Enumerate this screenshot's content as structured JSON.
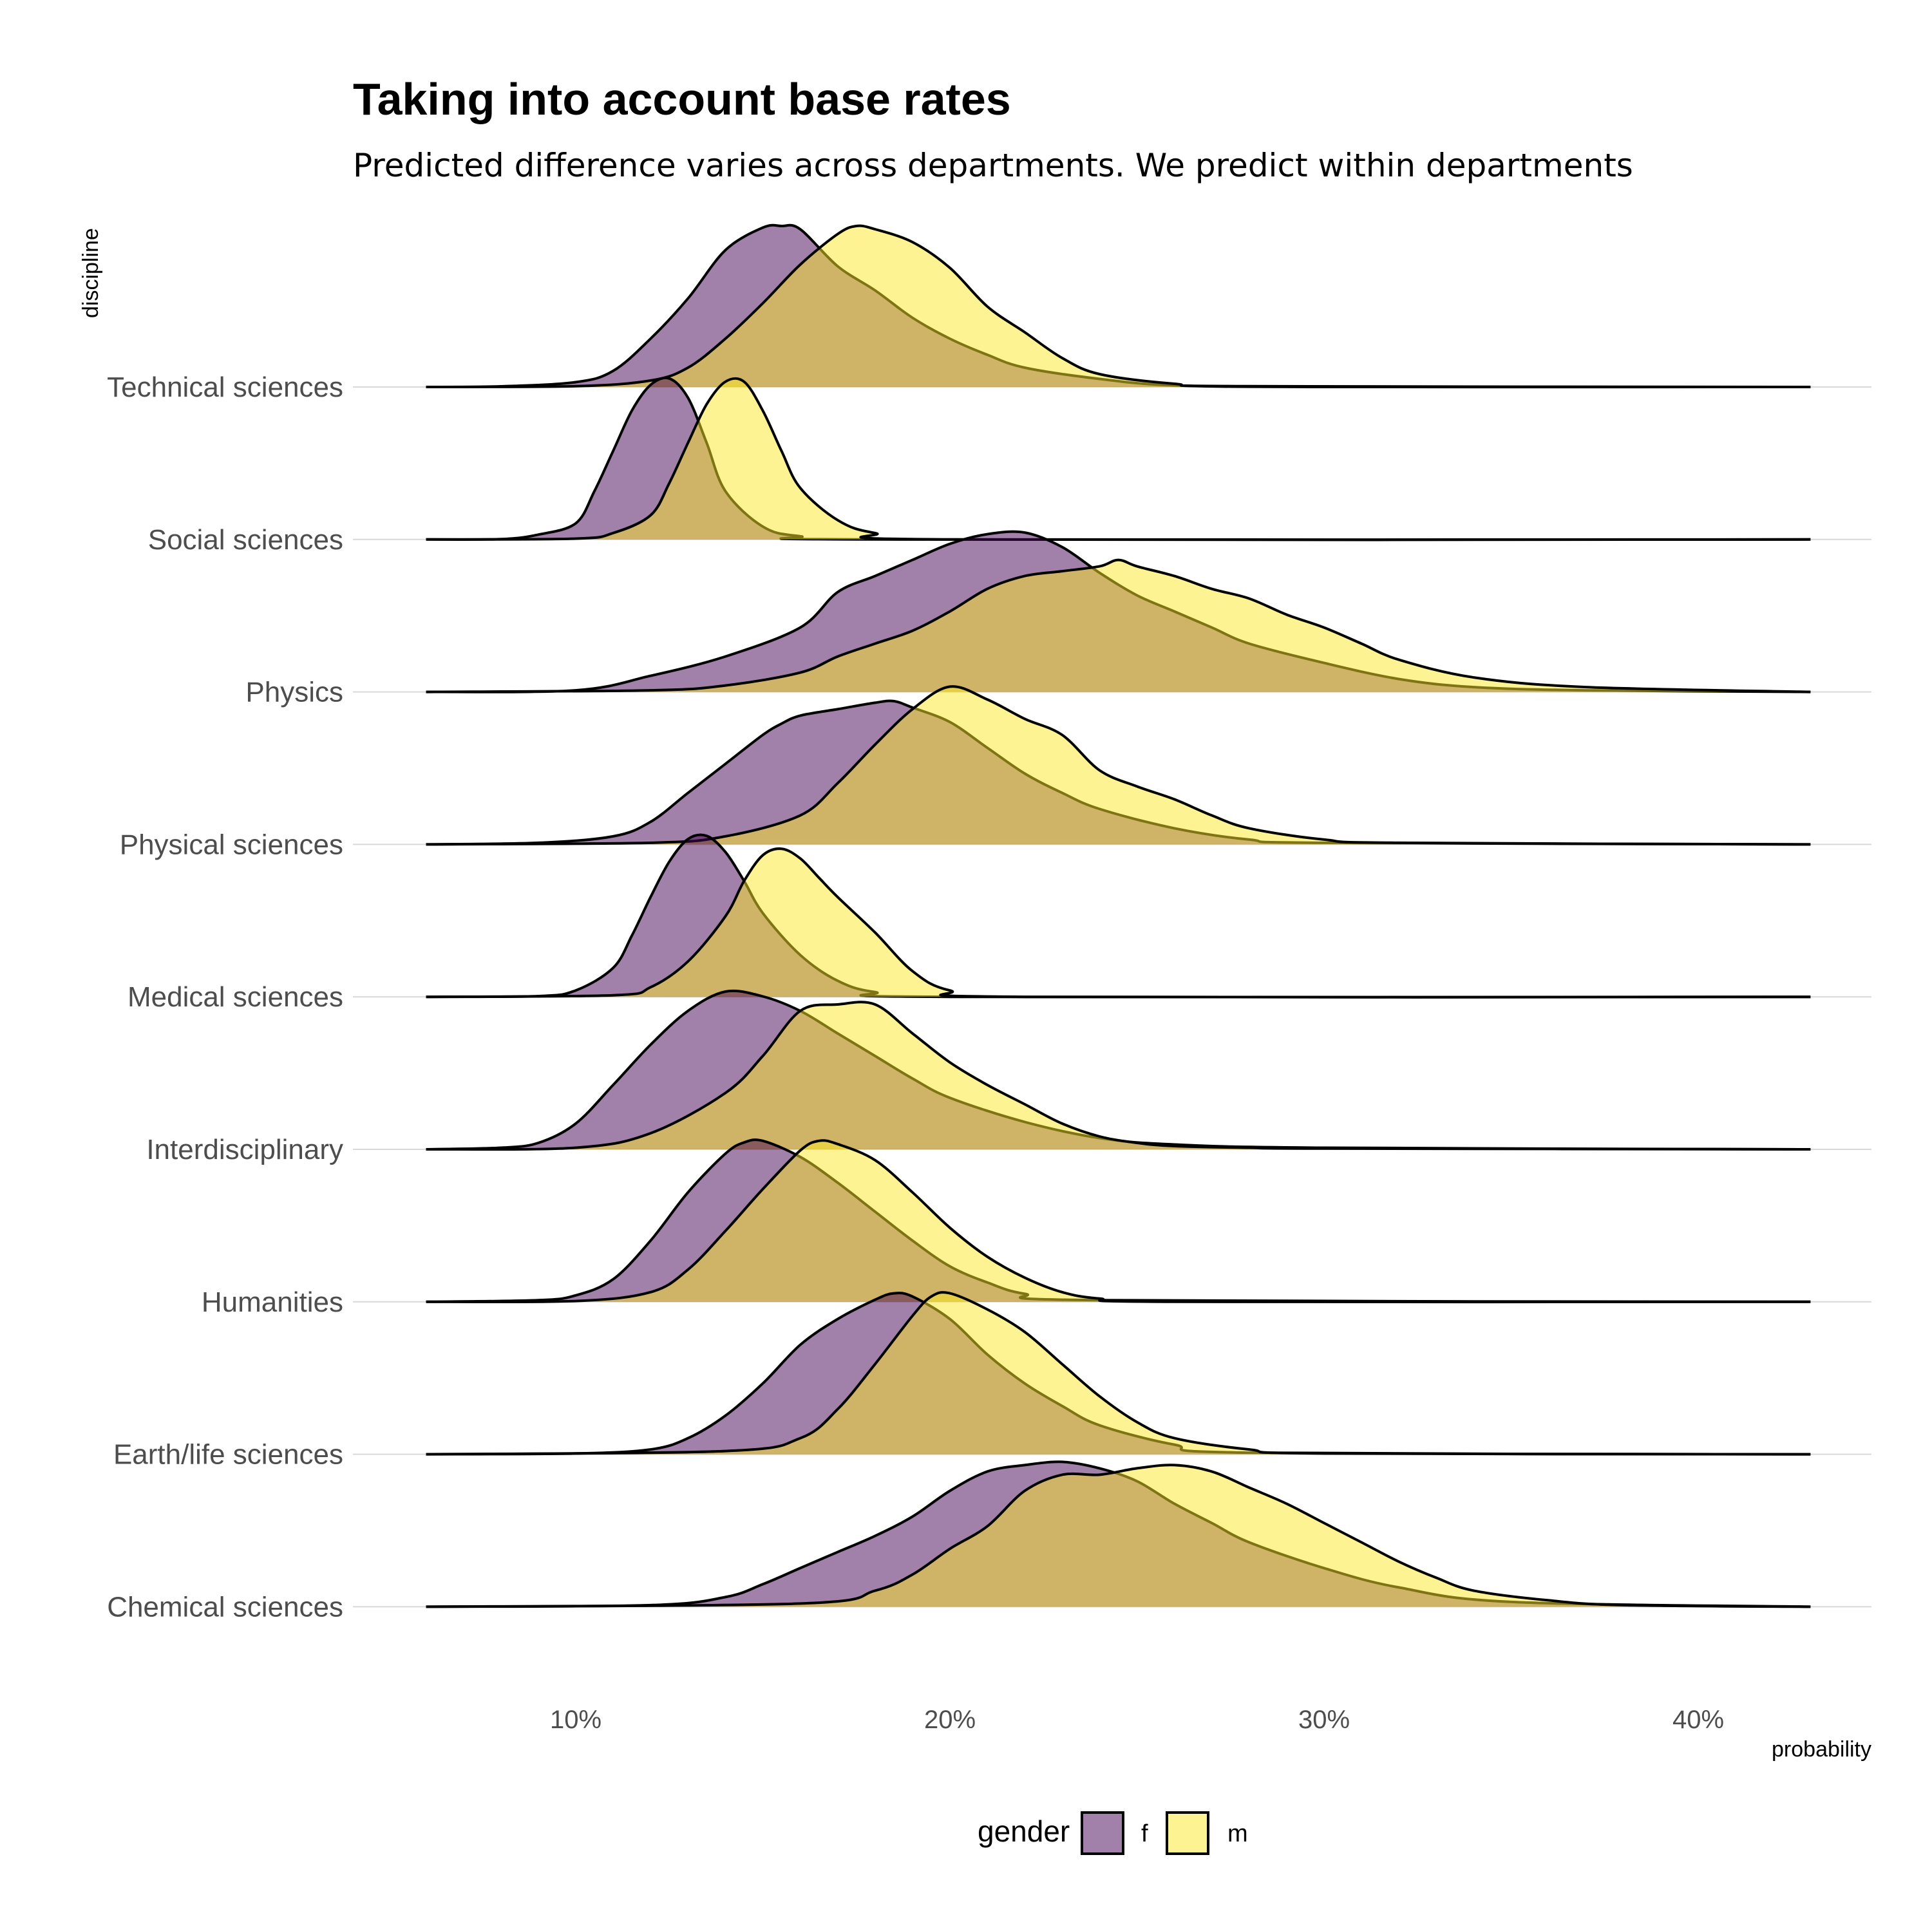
{
  "chart_data": {
    "type": "area",
    "subtype": "ridgeline",
    "title": "Taking into account base rates",
    "subtitle": "Predicted difference varies across departments. We predict within departments",
    "xlabel": "probability",
    "ylabel": "discipline",
    "x_ticks": [
      "10%",
      "20%",
      "30%",
      "40%"
    ],
    "x_tick_values": [
      0.1,
      0.2,
      0.3,
      0.4
    ],
    "xlim": [
      0.04,
      0.45
    ],
    "x_range_drawn": [
      0.06,
      0.43
    ],
    "grid": "horizontal only",
    "legend": {
      "title": "gender",
      "position": "bottom",
      "entries": [
        {
          "label": "f",
          "color": "#440154",
          "alpha": 0.5
        },
        {
          "label": "m",
          "color": "#FDE725",
          "alpha": 0.5
        }
      ]
    },
    "categories": [
      "Technical sciences",
      "Social sciences",
      "Physics",
      "Physical sciences",
      "Medical sciences",
      "Interdisciplinary",
      "Humanities",
      "Earth/life sciences",
      "Chemical sciences"
    ],
    "series": [
      {
        "name": "f",
        "distributions": [
          {
            "category": "Technical sciences",
            "x": [
              0.06,
              0.08,
              0.1,
              0.11,
              0.12,
              0.13,
              0.14,
              0.15,
              0.155,
              0.16,
              0.17,
              0.18,
              0.19,
              0.2,
              0.21,
              0.22,
              0.24,
              0.26,
              0.3,
              0.43
            ],
            "density": [
              0,
              0.004,
              0.03,
              0.1,
              0.3,
              0.55,
              0.85,
              0.99,
              1.0,
              0.98,
              0.75,
              0.6,
              0.43,
              0.3,
              0.2,
              0.12,
              0.05,
              0.01,
              0,
              0
            ]
          },
          {
            "category": "Social sciences",
            "x": [
              0.06,
              0.08,
              0.09,
              0.1,
              0.105,
              0.11,
              0.115,
              0.12,
              0.125,
              0.13,
              0.135,
              0.14,
              0.15,
              0.16,
              0.18,
              0.43
            ],
            "density": [
              0,
              0.002,
              0.03,
              0.1,
              0.3,
              0.55,
              0.8,
              0.96,
              1.0,
              0.88,
              0.6,
              0.3,
              0.08,
              0.02,
              0,
              0
            ]
          },
          {
            "category": "Physics",
            "x": [
              0.06,
              0.1,
              0.12,
              0.14,
              0.16,
              0.17,
              0.18,
              0.19,
              0.2,
              0.21,
              0.22,
              0.23,
              0.24,
              0.25,
              0.26,
              0.27,
              0.28,
              0.3,
              0.32,
              0.34,
              0.37,
              0.43
            ],
            "density": [
              0,
              0.01,
              0.1,
              0.22,
              0.4,
              0.62,
              0.72,
              0.82,
              0.92,
              0.98,
              0.99,
              0.9,
              0.74,
              0.6,
              0.5,
              0.4,
              0.3,
              0.18,
              0.08,
              0.03,
              0.01,
              0
            ]
          },
          {
            "category": "Physical sciences",
            "x": [
              0.06,
              0.09,
              0.11,
              0.12,
              0.13,
              0.14,
              0.15,
              0.155,
              0.16,
              0.17,
              0.18,
              0.185,
              0.19,
              0.2,
              0.21,
              0.22,
              0.23,
              0.24,
              0.26,
              0.28,
              0.3,
              0.43
            ],
            "density": [
              0,
              0.01,
              0.05,
              0.14,
              0.32,
              0.5,
              0.68,
              0.75,
              0.8,
              0.84,
              0.88,
              0.89,
              0.85,
              0.76,
              0.6,
              0.44,
              0.32,
              0.22,
              0.1,
              0.03,
              0.01,
              0
            ]
          },
          {
            "category": "Medical sciences",
            "x": [
              0.06,
              0.09,
              0.1,
              0.11,
              0.115,
              0.12,
              0.125,
              0.13,
              0.135,
              0.14,
              0.145,
              0.15,
              0.16,
              0.17,
              0.18,
              0.2,
              0.43
            ],
            "density": [
              0,
              0.005,
              0.04,
              0.18,
              0.38,
              0.62,
              0.84,
              0.98,
              1.0,
              0.9,
              0.72,
              0.52,
              0.26,
              0.1,
              0.03,
              0,
              0
            ]
          },
          {
            "category": "Interdisciplinary",
            "x": [
              0.06,
              0.08,
              0.09,
              0.1,
              0.11,
              0.12,
              0.13,
              0.14,
              0.15,
              0.16,
              0.17,
              0.18,
              0.19,
              0.2,
              0.22,
              0.24,
              0.26,
              0.3,
              0.43
            ],
            "density": [
              0,
              0.01,
              0.04,
              0.16,
              0.4,
              0.65,
              0.86,
              0.98,
              0.95,
              0.86,
              0.72,
              0.58,
              0.44,
              0.32,
              0.17,
              0.07,
              0.03,
              0.01,
              0
            ]
          },
          {
            "category": "Humanities",
            "x": [
              0.06,
              0.09,
              0.1,
              0.11,
              0.12,
              0.13,
              0.14,
              0.145,
              0.15,
              0.16,
              0.17,
              0.18,
              0.19,
              0.2,
              0.21,
              0.22,
              0.24,
              0.43
            ],
            "density": [
              0,
              0.01,
              0.04,
              0.14,
              0.38,
              0.68,
              0.92,
              0.99,
              1.0,
              0.9,
              0.74,
              0.56,
              0.38,
              0.22,
              0.12,
              0.05,
              0.01,
              0
            ]
          },
          {
            "category": "Earth/life sciences",
            "x": [
              0.06,
              0.1,
              0.12,
              0.13,
              0.14,
              0.15,
              0.16,
              0.17,
              0.18,
              0.185,
              0.19,
              0.2,
              0.21,
              0.22,
              0.23,
              0.24,
              0.26,
              0.28,
              0.43
            ],
            "density": [
              0,
              0.005,
              0.03,
              0.1,
              0.24,
              0.44,
              0.68,
              0.84,
              0.96,
              1.0,
              0.98,
              0.84,
              0.62,
              0.44,
              0.3,
              0.18,
              0.06,
              0.01,
              0
            ]
          },
          {
            "category": "Chemical sciences",
            "x": [
              0.06,
              0.12,
              0.14,
              0.15,
              0.16,
              0.17,
              0.18,
              0.19,
              0.2,
              0.21,
              0.22,
              0.23,
              0.24,
              0.25,
              0.26,
              0.27,
              0.28,
              0.3,
              0.32,
              0.35,
              0.43
            ],
            "density": [
              0,
              0.01,
              0.06,
              0.14,
              0.24,
              0.34,
              0.44,
              0.56,
              0.72,
              0.84,
              0.88,
              0.9,
              0.86,
              0.78,
              0.64,
              0.52,
              0.4,
              0.24,
              0.12,
              0.03,
              0
            ]
          }
        ]
      },
      {
        "name": "m",
        "distributions": [
          {
            "category": "Technical sciences",
            "x": [
              0.06,
              0.1,
              0.12,
              0.13,
              0.14,
              0.15,
              0.16,
              0.17,
              0.175,
              0.18,
              0.19,
              0.2,
              0.21,
              0.22,
              0.23,
              0.24,
              0.26,
              0.28,
              0.43
            ],
            "density": [
              0,
              0.005,
              0.04,
              0.12,
              0.3,
              0.52,
              0.76,
              0.95,
              1.0,
              0.98,
              0.9,
              0.74,
              0.5,
              0.34,
              0.18,
              0.08,
              0.02,
              0.005,
              0
            ]
          },
          {
            "category": "Social sciences",
            "x": [
              0.06,
              0.1,
              0.11,
              0.12,
              0.125,
              0.13,
              0.135,
              0.14,
              0.145,
              0.15,
              0.155,
              0.16,
              0.17,
              0.18,
              0.2,
              0.43
            ],
            "density": [
              0,
              0.005,
              0.04,
              0.15,
              0.35,
              0.6,
              0.84,
              0.98,
              0.98,
              0.8,
              0.55,
              0.32,
              0.12,
              0.04,
              0,
              0
            ]
          },
          {
            "category": "Physics",
            "x": [
              0.06,
              0.12,
              0.14,
              0.16,
              0.17,
              0.18,
              0.19,
              0.2,
              0.21,
              0.22,
              0.23,
              0.24,
              0.245,
              0.25,
              0.26,
              0.27,
              0.28,
              0.29,
              0.3,
              0.31,
              0.32,
              0.34,
              0.37,
              0.43
            ],
            "density": [
              0,
              0.01,
              0.04,
              0.12,
              0.22,
              0.3,
              0.38,
              0.5,
              0.64,
              0.72,
              0.75,
              0.78,
              0.82,
              0.78,
              0.72,
              0.64,
              0.58,
              0.48,
              0.4,
              0.3,
              0.2,
              0.09,
              0.03,
              0
            ]
          },
          {
            "category": "Physical sciences",
            "x": [
              0.06,
              0.12,
              0.14,
              0.16,
              0.17,
              0.18,
              0.19,
              0.2,
              0.21,
              0.22,
              0.23,
              0.24,
              0.25,
              0.26,
              0.27,
              0.28,
              0.3,
              0.32,
              0.43
            ],
            "density": [
              0,
              0.01,
              0.05,
              0.18,
              0.38,
              0.62,
              0.84,
              0.98,
              0.9,
              0.78,
              0.68,
              0.46,
              0.36,
              0.28,
              0.18,
              0.1,
              0.03,
              0.01,
              0
            ]
          },
          {
            "category": "Medical sciences",
            "x": [
              0.06,
              0.11,
              0.12,
              0.13,
              0.14,
              0.145,
              0.15,
              0.155,
              0.16,
              0.165,
              0.17,
              0.18,
              0.19,
              0.2,
              0.22,
              0.43
            ],
            "density": [
              0,
              0.01,
              0.06,
              0.22,
              0.5,
              0.72,
              0.88,
              0.92,
              0.86,
              0.74,
              0.62,
              0.4,
              0.16,
              0.04,
              0,
              0
            ]
          },
          {
            "category": "Interdisciplinary",
            "x": [
              0.06,
              0.1,
              0.12,
              0.14,
              0.15,
              0.16,
              0.17,
              0.18,
              0.19,
              0.2,
              0.21,
              0.22,
              0.23,
              0.24,
              0.25,
              0.26,
              0.28,
              0.3,
              0.43
            ],
            "density": [
              0,
              0.01,
              0.1,
              0.35,
              0.58,
              0.86,
              0.9,
              0.9,
              0.72,
              0.54,
              0.4,
              0.28,
              0.16,
              0.08,
              0.04,
              0.02,
              0.01,
              0.005,
              0
            ]
          },
          {
            "category": "Humanities",
            "x": [
              0.06,
              0.1,
              0.12,
              0.13,
              0.14,
              0.15,
              0.16,
              0.165,
              0.17,
              0.18,
              0.19,
              0.2,
              0.21,
              0.22,
              0.23,
              0.24,
              0.26,
              0.43
            ],
            "density": [
              0,
              0.005,
              0.06,
              0.2,
              0.44,
              0.7,
              0.94,
              1.0,
              0.98,
              0.88,
              0.68,
              0.46,
              0.28,
              0.15,
              0.06,
              0.02,
              0,
              0
            ]
          },
          {
            "category": "Earth/life sciences",
            "x": [
              0.06,
              0.14,
              0.16,
              0.17,
              0.18,
              0.19,
              0.195,
              0.2,
              0.21,
              0.22,
              0.23,
              0.24,
              0.25,
              0.26,
              0.28,
              0.3,
              0.43
            ],
            "density": [
              0,
              0.02,
              0.1,
              0.28,
              0.56,
              0.86,
              0.98,
              1.0,
              0.9,
              0.76,
              0.56,
              0.36,
              0.2,
              0.1,
              0.03,
              0.005,
              0
            ]
          },
          {
            "category": "Chemical sciences",
            "x": [
              0.06,
              0.16,
              0.18,
              0.19,
              0.2,
              0.21,
              0.22,
              0.23,
              0.24,
              0.25,
              0.26,
              0.27,
              0.28,
              0.29,
              0.3,
              0.31,
              0.32,
              0.33,
              0.34,
              0.36,
              0.38,
              0.43
            ],
            "density": [
              0,
              0.02,
              0.1,
              0.2,
              0.36,
              0.5,
              0.72,
              0.82,
              0.82,
              0.86,
              0.88,
              0.84,
              0.74,
              0.64,
              0.52,
              0.4,
              0.28,
              0.18,
              0.1,
              0.04,
              0.01,
              0
            ]
          }
        ]
      }
    ]
  }
}
